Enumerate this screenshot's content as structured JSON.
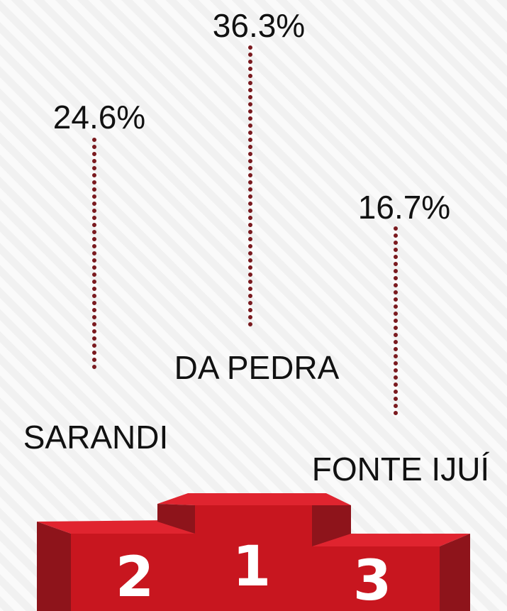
{
  "entries": [
    {
      "percent": "24.6%",
      "name": "SARANDI",
      "place": "2"
    },
    {
      "percent": "36.3%",
      "name": "DA PEDRA",
      "place": "1"
    },
    {
      "percent": "16.7%",
      "name": "FONTE IJUÍ",
      "place": "3"
    }
  ]
}
